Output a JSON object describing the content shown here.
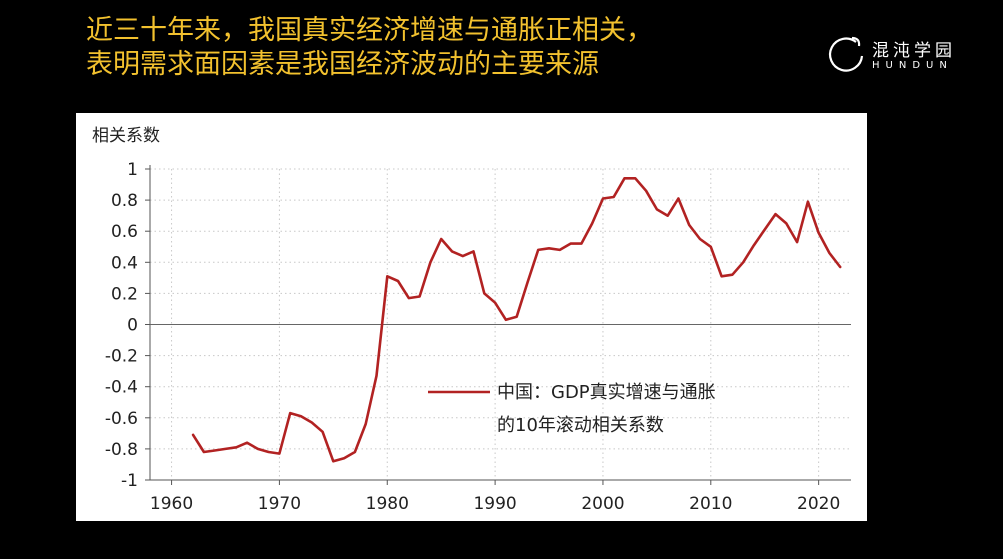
{
  "header": {
    "title_line1": "近三十年来，我国真实经济增速与通胀正相关，",
    "title_line2": "表明需求面因素是我国经济波动的主要来源"
  },
  "logo": {
    "cn": "混沌学园",
    "en": "HUNDUN",
    "icon": "hundun-logo-icon"
  },
  "colors": {
    "background": "#000000",
    "title": "#f2c12e",
    "panel": "#ffffff",
    "series": "#b22222",
    "axis": "#555555",
    "grid": "#c8c8c8"
  },
  "chart_data": {
    "type": "line",
    "ylabel": "相关系数",
    "xlabel": "",
    "xlim": [
      1958,
      2023
    ],
    "ylim": [
      -1,
      1
    ],
    "xticks": [
      1960,
      1970,
      1980,
      1990,
      2000,
      2010,
      2020
    ],
    "yticks": [
      1,
      0.8,
      0.6,
      0.4,
      0.2,
      0,
      -0.2,
      -0.4,
      -0.6,
      -0.8,
      -1
    ],
    "ytick_labels": [
      "1",
      "0.8",
      "0.6",
      "0.4",
      "0.2",
      "0",
      "-0.2",
      "-0.4",
      "-0.6",
      "-0.8",
      "-1"
    ],
    "grid": true,
    "legend": {
      "position": "lower-right",
      "line1": "中国：GDP真实增速与通胀",
      "line2": "的10年滚动相关系数"
    },
    "series": [
      {
        "name": "中国：GDP真实增速与通胀的10年滚动相关系数",
        "x": [
          1962,
          1963,
          1964,
          1965,
          1966,
          1967,
          1968,
          1969,
          1970,
          1971,
          1972,
          1973,
          1974,
          1975,
          1976,
          1977,
          1978,
          1979,
          1980,
          1981,
          1982,
          1983,
          1984,
          1985,
          1986,
          1987,
          1988,
          1989,
          1990,
          1991,
          1992,
          1993,
          1994,
          1995,
          1996,
          1997,
          1998,
          1999,
          2000,
          2001,
          2002,
          2003,
          2004,
          2005,
          2006,
          2007,
          2008,
          2009,
          2010,
          2011,
          2012,
          2013,
          2014,
          2015,
          2016,
          2017,
          2018,
          2019,
          2020,
          2021,
          2022
        ],
        "values": [
          -0.71,
          -0.82,
          -0.81,
          -0.8,
          -0.79,
          -0.76,
          -0.8,
          -0.82,
          -0.83,
          -0.57,
          -0.59,
          -0.63,
          -0.69,
          -0.88,
          -0.86,
          -0.82,
          -0.64,
          -0.33,
          0.31,
          0.28,
          0.17,
          0.18,
          0.4,
          0.55,
          0.47,
          0.44,
          0.47,
          0.2,
          0.14,
          0.03,
          0.05,
          0.27,
          0.48,
          0.49,
          0.48,
          0.52,
          0.52,
          0.65,
          0.81,
          0.82,
          0.94,
          0.94,
          0.86,
          0.74,
          0.7,
          0.81,
          0.64,
          0.55,
          0.5,
          0.31,
          0.32,
          0.4,
          0.51,
          0.61,
          0.71,
          0.65,
          0.53,
          0.79,
          0.59,
          0.46,
          0.37
        ]
      }
    ]
  }
}
